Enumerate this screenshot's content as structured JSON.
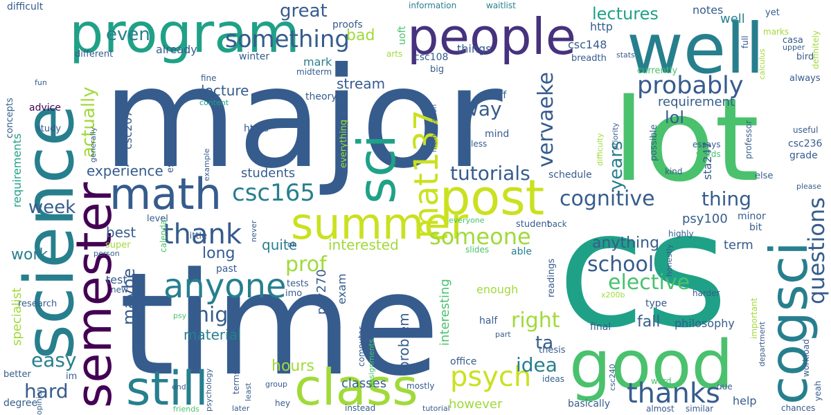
{
  "cloud": {
    "words": [
      {
        "text": "major",
        "color": "#365c8d"
      },
      {
        "text": "time",
        "color": "#365c8d"
      },
      {
        "text": "cs",
        "color": "#1fa187"
      },
      {
        "text": "lot",
        "color": "#4ac16d"
      },
      {
        "text": "well",
        "color": "#277f8e"
      },
      {
        "text": "science",
        "color": "#277f8e"
      },
      {
        "text": "good",
        "color": "#4ac16d"
      },
      {
        "text": "people",
        "color": "#46327e"
      },
      {
        "text": "program",
        "color": "#1fa187"
      },
      {
        "text": "semester",
        "color": "#440154"
      },
      {
        "text": "cogsci",
        "color": "#277f8e"
      },
      {
        "text": "sci",
        "color": "#1fa187"
      },
      {
        "text": "post",
        "color": "#cae11f"
      },
      {
        "text": "class",
        "color": "#a0da39"
      },
      {
        "text": "still",
        "color": "#277f8e"
      },
      {
        "text": "summer",
        "color": "#cae11f"
      },
      {
        "text": "math",
        "color": "#365c8d"
      },
      {
        "text": "mat137",
        "color": "#cae11f"
      },
      {
        "text": "anyone",
        "color": "#277f8e"
      },
      {
        "text": "thank",
        "color": "#365c8d"
      },
      {
        "text": "psych",
        "color": "#cae11f"
      },
      {
        "text": "thanks",
        "color": "#365c8d"
      },
      {
        "text": "something",
        "color": "#365c8d"
      },
      {
        "text": "csc165",
        "color": "#277f8e"
      },
      {
        "text": "probably",
        "color": "#365c8d"
      },
      {
        "text": "someone",
        "color": "#a0da39"
      },
      {
        "text": "questions",
        "color": "#365c8d"
      },
      {
        "text": "vervaeke",
        "color": "#365c8d"
      },
      {
        "text": "cognitive",
        "color": "#365c8d"
      },
      {
        "text": "school",
        "color": "#365c8d"
      },
      {
        "text": "elective",
        "color": "#4ac16d"
      },
      {
        "text": "tutorials",
        "color": "#365c8d"
      },
      {
        "text": "prof",
        "color": "#a0da39"
      },
      {
        "text": "right",
        "color": "#a0da39"
      },
      {
        "text": "idea",
        "color": "#277f8e"
      },
      {
        "text": "high",
        "color": "#365c8d"
      },
      {
        "text": "hard",
        "color": "#365c8d"
      },
      {
        "text": "easy",
        "color": "#277f8e"
      },
      {
        "text": "way",
        "color": "#365c8d"
      },
      {
        "text": "thing",
        "color": "#365c8d"
      },
      {
        "text": "even",
        "color": "#277f8e"
      },
      {
        "text": "great",
        "color": "#365c8d"
      },
      {
        "text": "week",
        "color": "#365c8d"
      },
      {
        "text": "actually",
        "color": "#a0da39"
      },
      {
        "text": "lectures",
        "color": "#1fa187"
      },
      {
        "text": "years",
        "color": "#277f8e"
      },
      {
        "text": "maybe",
        "color": "#365c8d"
      },
      {
        "text": "lol",
        "color": "#365c8d"
      },
      {
        "text": "anything",
        "color": "#365c8d"
      },
      {
        "text": "hours",
        "color": "#a0da39"
      },
      {
        "text": "ta",
        "color": "#365c8d"
      },
      {
        "text": "bad",
        "color": "#a0da39"
      },
      {
        "text": "interested",
        "color": "#a0da39"
      },
      {
        "text": "long",
        "color": "#365c8d"
      },
      {
        "text": "work",
        "color": "#277f8e"
      },
      {
        "text": "fall",
        "color": "#365c8d"
      },
      {
        "text": "experience",
        "color": "#365c8d"
      },
      {
        "text": "quite",
        "color": "#277f8e"
      },
      {
        "text": "material",
        "color": "#277f8e"
      },
      {
        "text": "stream",
        "color": "#365c8d"
      },
      {
        "text": "students",
        "color": "#365c8d"
      },
      {
        "text": "classes",
        "color": "#365c8d"
      },
      {
        "text": "problem",
        "color": "#365c8d"
      },
      {
        "text": "best",
        "color": "#365c8d"
      },
      {
        "text": "term",
        "color": "#365c8d"
      },
      {
        "text": "lecture",
        "color": "#365c8d"
      },
      {
        "text": "http",
        "color": "#365c8d"
      },
      {
        "text": "csc148",
        "color": "#365c8d"
      },
      {
        "text": "psy100",
        "color": "#365c8d"
      },
      {
        "text": "requirement",
        "color": "#365c8d"
      },
      {
        "text": "already",
        "color": "#365c8d"
      },
      {
        "text": "notes",
        "color": "#365c8d"
      },
      {
        "text": "philosophy",
        "color": "#365c8d"
      },
      {
        "text": "mark",
        "color": "#277f8e"
      },
      {
        "text": "specialist",
        "color": "#a0da39"
      },
      {
        "text": "requirements",
        "color": "#1fa187"
      },
      {
        "text": "psy270",
        "color": "#365c8d"
      },
      {
        "text": "however",
        "color": "#a0da39"
      },
      {
        "text": "interesting",
        "color": "#4ac16d"
      },
      {
        "text": "exam",
        "color": "#365c8d"
      },
      {
        "text": "csc207",
        "color": "#365c8d"
      },
      {
        "text": "test",
        "color": "#365c8d"
      },
      {
        "text": "sta247",
        "color": "#365c8d"
      },
      {
        "text": "things",
        "color": "#365c8d"
      },
      {
        "text": "difficult",
        "color": "#365c8d"
      },
      {
        "text": "program",
        "color": "#1fa187"
      },
      {
        "text": "proofs",
        "color": "#365c8d"
      },
      {
        "text": "information",
        "color": "#277f8e"
      },
      {
        "text": "waitlist",
        "color": "#277f8e"
      },
      {
        "text": "well",
        "color": "#277f8e"
      },
      {
        "text": "yet",
        "color": "#365c8d"
      },
      {
        "text": "definitely",
        "color": "#a0da39"
      },
      {
        "text": "marks",
        "color": "#a0da39"
      },
      {
        "text": "casa",
        "color": "#365c8d"
      },
      {
        "text": "upper",
        "color": "#365c8d"
      },
      {
        "text": "bird",
        "color": "#365c8d"
      },
      {
        "text": "full",
        "color": "#365c8d"
      },
      {
        "text": "calculus",
        "color": "#a0da39"
      },
      {
        "text": "different",
        "color": "#365c8d"
      },
      {
        "text": "winter",
        "color": "#365c8d"
      },
      {
        "text": "uoft",
        "color": "#4ac16d"
      },
      {
        "text": "arts",
        "color": "#a0da39"
      },
      {
        "text": "csc108",
        "color": "#365c8d"
      },
      {
        "text": "stats",
        "color": "#365c8d"
      },
      {
        "text": "breadth",
        "color": "#365c8d"
      },
      {
        "text": "big",
        "color": "#365c8d"
      },
      {
        "text": "midterm",
        "color": "#365c8d"
      },
      {
        "text": "theory",
        "color": "#365c8d"
      },
      {
        "text": "fine",
        "color": "#365c8d"
      },
      {
        "text": "currently",
        "color": "#4ac16d"
      },
      {
        "text": "always",
        "color": "#365c8d"
      },
      {
        "text": "fun",
        "color": "#365c8d"
      },
      {
        "text": "advice",
        "color": "#440154"
      },
      {
        "text": "study",
        "color": "#365c8d"
      },
      {
        "text": "generally",
        "color": "#365c8d"
      },
      {
        "text": "especially",
        "color": "#365c8d"
      },
      {
        "text": "example",
        "color": "#365c8d"
      },
      {
        "text": "content",
        "color": "#1fa187"
      },
      {
        "text": "https",
        "color": "#365c8d"
      },
      {
        "text": "essay",
        "color": "#365c8d"
      },
      {
        "text": "everything",
        "color": "#a0da39"
      },
      {
        "text": "stuff",
        "color": "#365c8d"
      },
      {
        "text": "mind",
        "color": "#365c8d"
      },
      {
        "text": "less",
        "color": "#365c8d"
      },
      {
        "text": "memorization",
        "color": "#365c8d"
      },
      {
        "text": "priority",
        "color": "#365c8d"
      },
      {
        "text": "difficulty",
        "color": "#a0da39"
      },
      {
        "text": "possible",
        "color": "#365c8d"
      },
      {
        "text": "essays",
        "color": "#365c8d"
      },
      {
        "text": "words",
        "color": "#4ac16d"
      },
      {
        "text": "professor",
        "color": "#365c8d"
      },
      {
        "text": "useful",
        "color": "#365c8d"
      },
      {
        "text": "csc236",
        "color": "#365c8d"
      },
      {
        "text": "grade",
        "color": "#365c8d"
      },
      {
        "text": "please",
        "color": "#365c8d"
      },
      {
        "text": "kind",
        "color": "#365c8d"
      },
      {
        "text": "else",
        "color": "#365c8d"
      },
      {
        "text": "schedule",
        "color": "#365c8d"
      },
      {
        "text": "concepts",
        "color": "#365c8d"
      },
      {
        "text": "calendar",
        "color": "#4ac16d"
      },
      {
        "text": "level",
        "color": "#365c8d"
      },
      {
        "text": "little",
        "color": "#365c8d"
      },
      {
        "text": "ok",
        "color": "#365c8d"
      },
      {
        "text": "student",
        "color": "#365c8d"
      },
      {
        "text": "back",
        "color": "#365c8d"
      },
      {
        "text": "everyone",
        "color": "#4ac16d"
      },
      {
        "text": "readings",
        "color": "#365c8d"
      },
      {
        "text": "highly",
        "color": "#365c8d"
      },
      {
        "text": "minor",
        "color": "#365c8d"
      },
      {
        "text": "bit",
        "color": "#365c8d"
      },
      {
        "text": "super",
        "color": "#a0da39"
      },
      {
        "text": "person",
        "color": "#365c8d"
      },
      {
        "text": "never",
        "color": "#365c8d"
      },
      {
        "text": "slides",
        "color": "#4ac16d"
      },
      {
        "text": "able",
        "color": "#277f8e"
      },
      {
        "text": "honestly",
        "color": "#365c8d"
      },
      {
        "text": "past",
        "color": "#365c8d"
      },
      {
        "text": "research",
        "color": "#365c8d"
      },
      {
        "text": "new",
        "color": "#365c8d"
      },
      {
        "text": "competitive",
        "color": "#365c8d"
      },
      {
        "text": "tests",
        "color": "#365c8d"
      },
      {
        "text": "imo",
        "color": "#365c8d"
      },
      {
        "text": "enough",
        "color": "#a0da39"
      },
      {
        "text": "x200b",
        "color": "#a0da39"
      },
      {
        "text": "harder",
        "color": "#365c8d"
      },
      {
        "text": "type",
        "color": "#365c8d"
      },
      {
        "text": "department",
        "color": "#365c8d"
      },
      {
        "text": "important",
        "color": "#a0da39"
      },
      {
        "text": "psy",
        "color": "#4ac16d"
      },
      {
        "text": "half",
        "color": "#365c8d"
      },
      {
        "text": "final",
        "color": "#365c8d"
      },
      {
        "text": "part",
        "color": "#365c8d"
      },
      {
        "text": "thesis",
        "color": "#365c8d"
      },
      {
        "text": "workload",
        "color": "#365c8d"
      },
      {
        "text": "opinion",
        "color": "#365c8d"
      },
      {
        "text": "better",
        "color": "#365c8d"
      },
      {
        "text": "im",
        "color": "#365c8d"
      },
      {
        "text": "degree",
        "color": "#365c8d"
      },
      {
        "text": "end",
        "color": "#365c8d"
      },
      {
        "text": "psychology",
        "color": "#365c8d"
      },
      {
        "text": "friends",
        "color": "#4ac16d"
      },
      {
        "text": "terms",
        "color": "#365c8d"
      },
      {
        "text": "least",
        "color": "#365c8d"
      },
      {
        "text": "later",
        "color": "#365c8d"
      },
      {
        "text": "hey",
        "color": "#365c8d"
      },
      {
        "text": "group",
        "color": "#365c8d"
      },
      {
        "text": "computer",
        "color": "#365c8d"
      },
      {
        "text": "assignments",
        "color": "#4ac16d"
      },
      {
        "text": "instead",
        "color": "#365c8d"
      },
      {
        "text": "mostly",
        "color": "#365c8d"
      },
      {
        "text": "tutorial",
        "color": "#365c8d"
      },
      {
        "text": "office",
        "color": "#365c8d"
      },
      {
        "text": "ideas",
        "color": "#365c8d"
      },
      {
        "text": "csc240",
        "color": "#365c8d"
      },
      {
        "text": "basically",
        "color": "#365c8d"
      },
      {
        "text": "word",
        "color": "#4ac16d"
      },
      {
        "text": "almost",
        "color": "#365c8d"
      },
      {
        "text": "similar",
        "color": "#365c8d"
      },
      {
        "text": "due",
        "color": "#365c8d"
      },
      {
        "text": "help",
        "color": "#365c8d"
      },
      {
        "text": "yeah",
        "color": "#365c8d"
      },
      {
        "text": "chances",
        "color": "#365c8d"
      }
    ]
  }
}
